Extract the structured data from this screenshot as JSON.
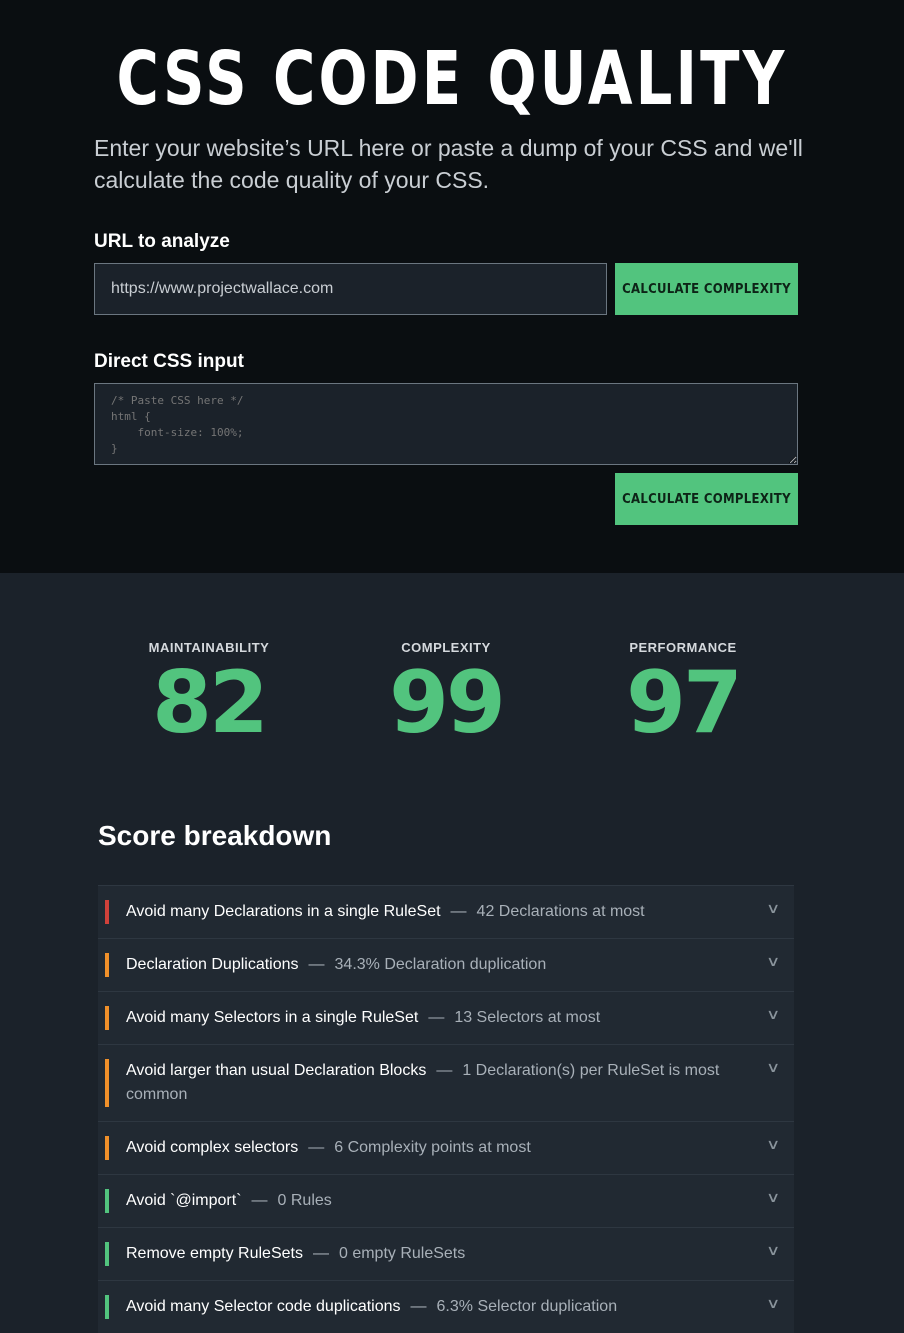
{
  "header": {
    "title": "CSS CODE QUALITY",
    "intro": "Enter your website’s URL here or paste a dump of your CSS and we'll calculate the code quality of your CSS."
  },
  "url_form": {
    "label": "URL to analyze",
    "value": "https://www.projectwallace.com",
    "button": "CALCULATE COMPLEXITY"
  },
  "css_form": {
    "label": "Direct CSS input",
    "placeholder": "/* Paste CSS here */\nhtml {\n    font-size: 100%;\n}",
    "button": "CALCULATE COMPLEXITY"
  },
  "scores": [
    {
      "label": "MAINTAINABILITY",
      "value": "82"
    },
    {
      "label": "COMPLEXITY",
      "value": "99"
    },
    {
      "label": "PERFORMANCE",
      "value": "97"
    }
  ],
  "breakdown": {
    "title": "Score breakdown",
    "colors": {
      "red": "#d0413a",
      "orange": "#f0902a",
      "green": "#52c47e"
    },
    "items": [
      {
        "name": "Avoid many Declarations in a single RuleSet",
        "detail": "42 Declarations at most",
        "status": "red"
      },
      {
        "name": "Declaration Duplications",
        "detail": "34.3% Declaration duplication",
        "status": "orange"
      },
      {
        "name": "Avoid many Selectors in a single RuleSet",
        "detail": "13 Selectors at most",
        "status": "orange"
      },
      {
        "name": "Avoid larger than usual Declaration Blocks",
        "detail": "1 Declaration(s) per RuleSet is most common",
        "status": "orange"
      },
      {
        "name": "Avoid complex selectors",
        "detail": "6 Complexity points at most",
        "status": "orange"
      },
      {
        "name": "Avoid `@import`",
        "detail": "0 Rules",
        "status": "green"
      },
      {
        "name": "Remove empty RuleSets",
        "detail": "0 empty RuleSets",
        "status": "green"
      },
      {
        "name": "Avoid many Selector code duplications",
        "detail": "6.3% Selector duplication",
        "status": "green"
      }
    ]
  }
}
